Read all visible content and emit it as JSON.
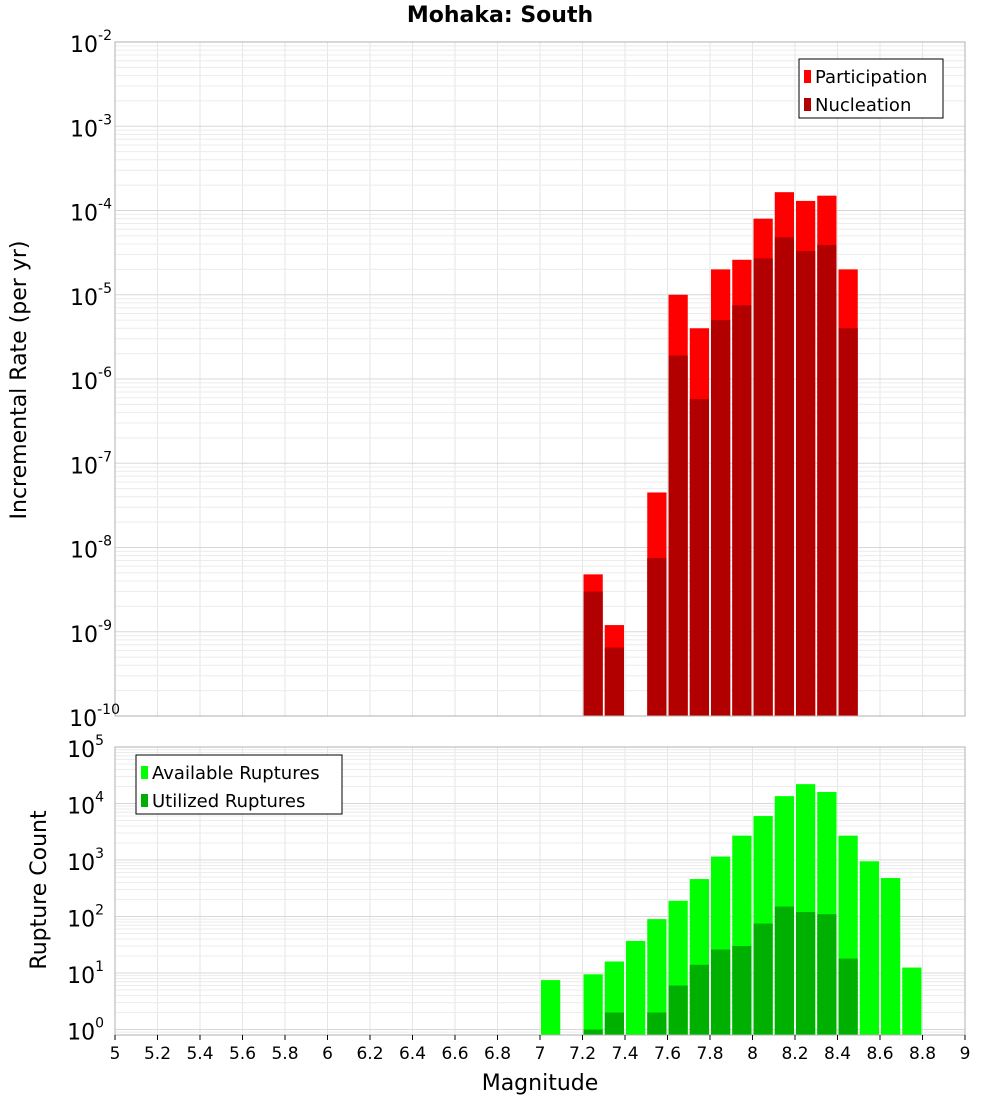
{
  "chart_data": [
    {
      "type": "bar",
      "title": "Mohaka: South",
      "xlabel": "",
      "ylabel": "Incremental Rate (per yr)",
      "y_scale": "log",
      "ylim": [
        1e-10,
        0.01
      ],
      "xlim": [
        5,
        9
      ],
      "grid": true,
      "legend_position": "top-right",
      "x": [
        7.25,
        7.35,
        7.55,
        7.65,
        7.75,
        7.85,
        7.95,
        8.05,
        8.15,
        8.25,
        8.35,
        8.45
      ],
      "series": [
        {
          "name": "Participation",
          "color": "#ff0000",
          "values": [
            4.8e-09,
            1.2e-09,
            4.5e-08,
            1e-05,
            4e-06,
            2e-05,
            2.6e-05,
            8e-05,
            0.000165,
            0.00013,
            0.00015,
            2e-05
          ]
        },
        {
          "name": "Nucleation",
          "color": "#b20000",
          "values": [
            3e-09,
            6.5e-10,
            7.5e-09,
            1.9e-06,
            5.8e-07,
            5e-06,
            7.5e-06,
            2.7e-05,
            4.8e-05,
            3.3e-05,
            3.9e-05,
            4e-06
          ]
        }
      ]
    },
    {
      "type": "bar",
      "title": "",
      "xlabel": "Magnitude",
      "ylabel": "Rupture Count",
      "y_scale": "log",
      "ylim": [
        0.8,
        100000.0
      ],
      "xlim": [
        5,
        9
      ],
      "grid": true,
      "legend_position": "top-left",
      "x_ticks": [
        "5",
        "5.2",
        "5.4",
        "5.6",
        "5.8",
        "6",
        "6.2",
        "6.4",
        "6.6",
        "6.8",
        "7",
        "7.2",
        "7.4",
        "7.6",
        "7.8",
        "8",
        "8.2",
        "8.4",
        "8.6",
        "8.8",
        "9"
      ],
      "series": [
        {
          "name": "Available Ruptures",
          "color": "#00ff00",
          "x": [
            7.05,
            7.25,
            7.35,
            7.45,
            7.55,
            7.65,
            7.75,
            7.85,
            7.95,
            8.05,
            8.15,
            8.25,
            8.35,
            8.45,
            8.55,
            8.65,
            8.75
          ],
          "values": [
            7.5,
            9.5,
            16,
            37,
            90,
            190,
            460,
            1150,
            2700,
            6000,
            13500,
            22000,
            16000,
            2700,
            950,
            480,
            12.5
          ]
        },
        {
          "name": "Utilized Ruptures",
          "color": "#00b000",
          "x": [
            7.25,
            7.35,
            7.55,
            7.65,
            7.75,
            7.85,
            7.95,
            8.05,
            8.15,
            8.25,
            8.35,
            8.45
          ],
          "values": [
            1,
            2,
            2,
            6,
            14,
            26,
            30,
            75,
            150,
            120,
            110,
            18
          ]
        }
      ]
    }
  ]
}
